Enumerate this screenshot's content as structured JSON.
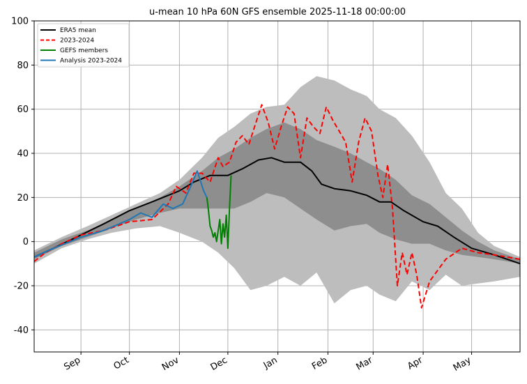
{
  "chart_data": {
    "type": "line",
    "title": "u-mean 10 hPa 60N GFS ensemble 2025-11-18 00:00:00",
    "xlabel": "",
    "ylabel": "",
    "grid": true,
    "legend_position": "top-left",
    "xlim": [
      "2025-08-03",
      "2026-05-31"
    ],
    "ylim": [
      -50,
      100
    ],
    "yticks": [
      -40,
      -20,
      0,
      20,
      40,
      60,
      80,
      100
    ],
    "month_ticks": [
      {
        "date": "2025-09-01",
        "label": "Sep"
      },
      {
        "date": "2025-10-01",
        "label": "Oct"
      },
      {
        "date": "2025-11-01",
        "label": "Nov"
      },
      {
        "date": "2025-12-01",
        "label": "Dec"
      },
      {
        "date": "2026-01-01",
        "label": "Jan"
      },
      {
        "date": "2026-02-01",
        "label": "Feb"
      },
      {
        "date": "2026-03-01",
        "label": "Mar"
      },
      {
        "date": "2026-04-01",
        "label": "Apr"
      },
      {
        "date": "2026-05-01",
        "label": "May"
      }
    ],
    "colors": {
      "outer_band": "#bdbdbd",
      "inner_band": "#8e8e8e",
      "era5": "#000000",
      "year": "#ff0000",
      "gefs": "#008000",
      "analysis": "#1f77b4",
      "grid": "#b0b0b0"
    },
    "legend": [
      {
        "label": "ERA5 mean",
        "series": "era5",
        "style": "solid"
      },
      {
        "label": "2023-2024",
        "series": "year",
        "style": "dashed"
      },
      {
        "label": "GEFS members",
        "series": "gefs",
        "style": "solid"
      },
      {
        "label": "Analysis 2023-2024",
        "series": "analysis",
        "style": "solid"
      }
    ],
    "bands": {
      "outer": [
        {
          "x": "2025-08-03",
          "lo": -10,
          "hi": -4
        },
        {
          "x": "2025-08-20",
          "lo": -3,
          "hi": 2
        },
        {
          "x": "2025-09-05",
          "lo": 1,
          "hi": 7
        },
        {
          "x": "2025-09-20",
          "lo": 4,
          "hi": 12
        },
        {
          "x": "2025-10-05",
          "lo": 6,
          "hi": 17
        },
        {
          "x": "2025-10-20",
          "lo": 7,
          "hi": 22
        },
        {
          "x": "2025-11-01",
          "lo": 4,
          "hi": 28
        },
        {
          "x": "2025-11-15",
          "lo": 0,
          "hi": 38
        },
        {
          "x": "2025-11-25",
          "lo": -5,
          "hi": 47
        },
        {
          "x": "2025-12-05",
          "lo": -12,
          "hi": 52
        },
        {
          "x": "2025-12-15",
          "lo": -22,
          "hi": 58
        },
        {
          "x": "2025-12-25",
          "lo": -20,
          "hi": 61
        },
        {
          "x": "2026-01-05",
          "lo": -16,
          "hi": 62
        },
        {
          "x": "2026-01-15",
          "lo": -20,
          "hi": 70
        },
        {
          "x": "2026-01-25",
          "lo": -14,
          "hi": 75
        },
        {
          "x": "2026-02-05",
          "lo": -28,
          "hi": 73
        },
        {
          "x": "2026-02-15",
          "lo": -22,
          "hi": 69
        },
        {
          "x": "2026-02-25",
          "lo": -20,
          "hi": 66
        },
        {
          "x": "2026-03-05",
          "lo": -24,
          "hi": 60
        },
        {
          "x": "2026-03-15",
          "lo": -27,
          "hi": 56
        },
        {
          "x": "2026-03-25",
          "lo": -18,
          "hi": 48
        },
        {
          "x": "2026-04-05",
          "lo": -22,
          "hi": 36
        },
        {
          "x": "2026-04-15",
          "lo": -15,
          "hi": 22
        },
        {
          "x": "2026-04-25",
          "lo": -20,
          "hi": 15
        },
        {
          "x": "2026-05-05",
          "lo": -19,
          "hi": 4
        },
        {
          "x": "2026-05-15",
          "lo": -18,
          "hi": -2
        },
        {
          "x": "2026-05-31",
          "lo": -16,
          "hi": -7
        }
      ],
      "inner": [
        {
          "x": "2025-08-03",
          "lo": -8,
          "hi": -5
        },
        {
          "x": "2025-08-20",
          "lo": -2,
          "hi": 1
        },
        {
          "x": "2025-09-05",
          "lo": 2,
          "hi": 5
        },
        {
          "x": "2025-09-20",
          "lo": 6,
          "hi": 10
        },
        {
          "x": "2025-10-05",
          "lo": 10,
          "hi": 15
        },
        {
          "x": "2025-10-20",
          "lo": 13,
          "hi": 20
        },
        {
          "x": "2025-11-01",
          "lo": 15,
          "hi": 25
        },
        {
          "x": "2025-11-15",
          "lo": 15,
          "hi": 32
        },
        {
          "x": "2025-11-25",
          "lo": 15,
          "hi": 38
        },
        {
          "x": "2025-12-05",
          "lo": 15,
          "hi": 42
        },
        {
          "x": "2025-12-15",
          "lo": 18,
          "hi": 47
        },
        {
          "x": "2025-12-25",
          "lo": 22,
          "hi": 51
        },
        {
          "x": "2026-01-05",
          "lo": 20,
          "hi": 54
        },
        {
          "x": "2026-01-15",
          "lo": 15,
          "hi": 51
        },
        {
          "x": "2026-01-25",
          "lo": 10,
          "hi": 46
        },
        {
          "x": "2026-02-05",
          "lo": 5,
          "hi": 43
        },
        {
          "x": "2026-02-15",
          "lo": 7,
          "hi": 40
        },
        {
          "x": "2026-02-25",
          "lo": 8,
          "hi": 36
        },
        {
          "x": "2026-03-05",
          "lo": 4,
          "hi": 33
        },
        {
          "x": "2026-03-15",
          "lo": 1,
          "hi": 28
        },
        {
          "x": "2026-03-25",
          "lo": -1,
          "hi": 21
        },
        {
          "x": "2026-04-05",
          "lo": -1,
          "hi": 17
        },
        {
          "x": "2026-04-15",
          "lo": -4,
          "hi": 11
        },
        {
          "x": "2026-04-25",
          "lo": -6,
          "hi": 5
        },
        {
          "x": "2026-05-05",
          "lo": -7,
          "hi": 0
        },
        {
          "x": "2026-05-15",
          "lo": -8,
          "hi": -4
        },
        {
          "x": "2026-05-31",
          "lo": -10,
          "hi": -8
        }
      ]
    },
    "series": [
      {
        "key": "era5",
        "name": "ERA5 mean",
        "points": [
          {
            "x": "2025-08-03",
            "y": -7
          },
          {
            "x": "2025-08-15",
            "y": -3
          },
          {
            "x": "2025-09-01",
            "y": 3
          },
          {
            "x": "2025-09-15",
            "y": 8
          },
          {
            "x": "2025-10-01",
            "y": 14
          },
          {
            "x": "2025-10-15",
            "y": 18
          },
          {
            "x": "2025-11-01",
            "y": 23
          },
          {
            "x": "2025-11-10",
            "y": 27
          },
          {
            "x": "2025-11-20",
            "y": 30
          },
          {
            "x": "2025-12-01",
            "y": 30
          },
          {
            "x": "2025-12-10",
            "y": 33
          },
          {
            "x": "2025-12-20",
            "y": 37
          },
          {
            "x": "2025-12-28",
            "y": 38
          },
          {
            "x": "2026-01-05",
            "y": 36
          },
          {
            "x": "2026-01-15",
            "y": 36
          },
          {
            "x": "2026-01-22",
            "y": 32
          },
          {
            "x": "2026-01-28",
            "y": 26
          },
          {
            "x": "2026-02-05",
            "y": 24
          },
          {
            "x": "2026-02-15",
            "y": 23
          },
          {
            "x": "2026-02-25",
            "y": 21
          },
          {
            "x": "2026-03-05",
            "y": 18
          },
          {
            "x": "2026-03-12",
            "y": 18
          },
          {
            "x": "2026-03-20",
            "y": 14
          },
          {
            "x": "2026-04-01",
            "y": 9
          },
          {
            "x": "2026-04-10",
            "y": 7
          },
          {
            "x": "2026-04-20",
            "y": 2
          },
          {
            "x": "2026-05-01",
            "y": -3
          },
          {
            "x": "2026-05-15",
            "y": -6
          },
          {
            "x": "2026-05-31",
            "y": -10
          }
        ]
      },
      {
        "key": "year",
        "name": "2023-2024",
        "points": [
          {
            "x": "2025-08-03",
            "y": -9
          },
          {
            "x": "2025-08-10",
            "y": -5
          },
          {
            "x": "2025-08-20",
            "y": -1
          },
          {
            "x": "2025-09-01",
            "y": 3
          },
          {
            "x": "2025-09-15",
            "y": 5
          },
          {
            "x": "2025-10-01",
            "y": 9
          },
          {
            "x": "2025-10-15",
            "y": 10
          },
          {
            "x": "2025-10-25",
            "y": 17
          },
          {
            "x": "2025-10-30",
            "y": 25
          },
          {
            "x": "2025-11-05",
            "y": 22
          },
          {
            "x": "2025-11-10",
            "y": 31
          },
          {
            "x": "2025-11-15",
            "y": 31
          },
          {
            "x": "2025-11-20",
            "y": 27
          },
          {
            "x": "2025-11-25",
            "y": 38
          },
          {
            "x": "2025-11-28",
            "y": 34
          },
          {
            "x": "2025-12-02",
            "y": 36
          },
          {
            "x": "2025-12-06",
            "y": 45
          },
          {
            "x": "2025-12-10",
            "y": 48
          },
          {
            "x": "2025-12-14",
            "y": 44
          },
          {
            "x": "2025-12-18",
            "y": 53
          },
          {
            "x": "2025-12-22",
            "y": 62
          },
          {
            "x": "2025-12-26",
            "y": 54
          },
          {
            "x": "2025-12-30",
            "y": 42
          },
          {
            "x": "2026-01-03",
            "y": 52
          },
          {
            "x": "2026-01-07",
            "y": 61
          },
          {
            "x": "2026-01-11",
            "y": 58
          },
          {
            "x": "2026-01-15",
            "y": 38
          },
          {
            "x": "2026-01-19",
            "y": 56
          },
          {
            "x": "2026-01-23",
            "y": 52
          },
          {
            "x": "2026-01-27",
            "y": 49
          },
          {
            "x": "2026-01-31",
            "y": 61
          },
          {
            "x": "2026-02-04",
            "y": 55
          },
          {
            "x": "2026-02-08",
            "y": 50
          },
          {
            "x": "2026-02-12",
            "y": 45
          },
          {
            "x": "2026-02-16",
            "y": 27
          },
          {
            "x": "2026-02-20",
            "y": 45
          },
          {
            "x": "2026-02-24",
            "y": 56
          },
          {
            "x": "2026-02-28",
            "y": 50
          },
          {
            "x": "2026-03-04",
            "y": 30
          },
          {
            "x": "2026-03-07",
            "y": 20
          },
          {
            "x": "2026-03-10",
            "y": 35
          },
          {
            "x": "2026-03-13",
            "y": 15
          },
          {
            "x": "2026-03-16",
            "y": -20
          },
          {
            "x": "2026-03-19",
            "y": -5
          },
          {
            "x": "2026-03-22",
            "y": -15
          },
          {
            "x": "2026-03-25",
            "y": -5
          },
          {
            "x": "2026-03-28",
            "y": -15
          },
          {
            "x": "2026-03-31",
            "y": -30
          },
          {
            "x": "2026-04-05",
            "y": -18
          },
          {
            "x": "2026-04-15",
            "y": -8
          },
          {
            "x": "2026-04-25",
            "y": -3
          },
          {
            "x": "2026-05-05",
            "y": -5
          },
          {
            "x": "2026-05-15",
            "y": -6
          },
          {
            "x": "2026-05-31",
            "y": -8
          }
        ]
      },
      {
        "key": "gefs",
        "name": "GEFS members",
        "points": [
          {
            "x": "2025-11-18",
            "y": 20
          },
          {
            "x": "2025-11-19",
            "y": 14
          },
          {
            "x": "2025-11-20",
            "y": 7
          },
          {
            "x": "2025-11-21",
            "y": 5
          },
          {
            "x": "2025-11-22",
            "y": 2
          },
          {
            "x": "2025-11-23",
            "y": 4
          },
          {
            "x": "2025-11-24",
            "y": 0
          },
          {
            "x": "2025-11-25",
            "y": 5
          },
          {
            "x": "2025-11-26",
            "y": 10
          },
          {
            "x": "2025-11-27",
            "y": -1
          },
          {
            "x": "2025-11-28",
            "y": 8
          },
          {
            "x": "2025-11-29",
            "y": 2
          },
          {
            "x": "2025-11-30",
            "y": 12
          },
          {
            "x": "2025-12-01",
            "y": -3
          },
          {
            "x": "2025-12-02",
            "y": 15
          },
          {
            "x": "2025-12-03",
            "y": 30
          }
        ]
      },
      {
        "key": "analysis",
        "name": "Analysis 2023-2024",
        "points": [
          {
            "x": "2025-08-03",
            "y": -7
          },
          {
            "x": "2025-08-15",
            "y": -3
          },
          {
            "x": "2025-09-01",
            "y": 2
          },
          {
            "x": "2025-09-15",
            "y": 5
          },
          {
            "x": "2025-10-01",
            "y": 10
          },
          {
            "x": "2025-10-08",
            "y": 13
          },
          {
            "x": "2025-10-15",
            "y": 11
          },
          {
            "x": "2025-10-22",
            "y": 17
          },
          {
            "x": "2025-10-28",
            "y": 15
          },
          {
            "x": "2025-11-03",
            "y": 17
          },
          {
            "x": "2025-11-08",
            "y": 25
          },
          {
            "x": "2025-11-12",
            "y": 32
          },
          {
            "x": "2025-11-16",
            "y": 23
          },
          {
            "x": "2025-11-18",
            "y": 20
          }
        ]
      }
    ]
  }
}
